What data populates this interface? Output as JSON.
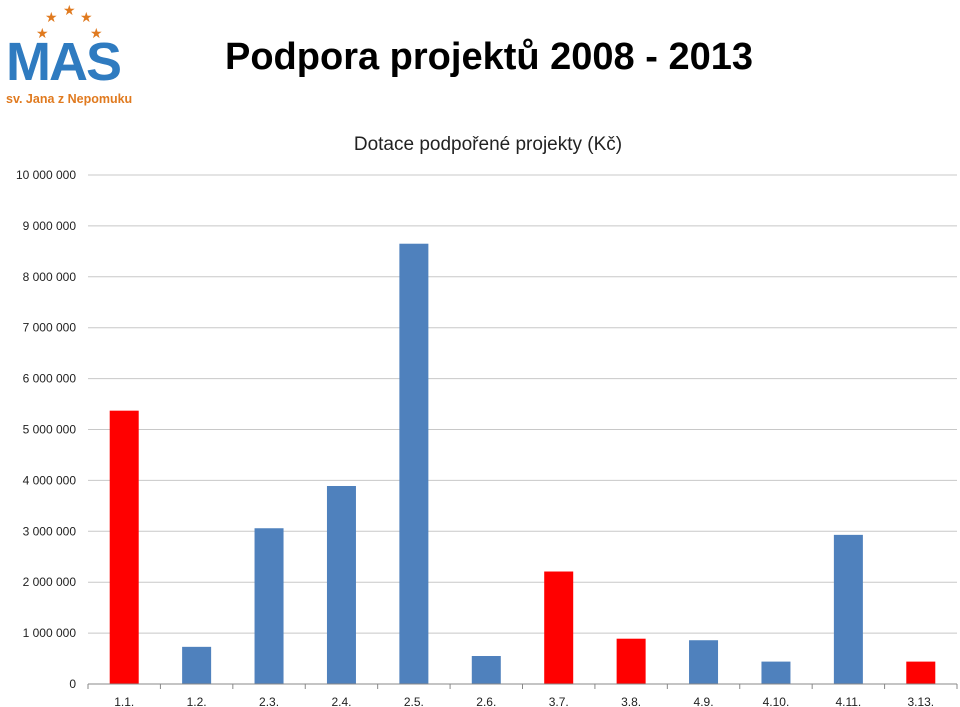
{
  "header": {
    "title": "Podpora projektů 2008 - 2013",
    "logo": {
      "letters": [
        "M",
        "A",
        "S"
      ],
      "subtitle": "sv. Jana z Nepomuku",
      "primary_color": "#2f7bc0",
      "accent_color": "#e07a1f"
    }
  },
  "chart_data": {
    "type": "bar",
    "title": "Dotace podpořené projekty (Kč)",
    "xlabel": "",
    "ylabel": "",
    "ylim": [
      0,
      10000000
    ],
    "yticks": [
      0,
      1000000,
      2000000,
      3000000,
      4000000,
      5000000,
      6000000,
      7000000,
      8000000,
      9000000,
      10000000
    ],
    "ytick_labels": [
      "0",
      "1 000 000",
      "2 000 000",
      "3 000 000",
      "4 000 000",
      "5 000 000",
      "6 000 000",
      "7 000 000",
      "8 000 000",
      "9 000 000",
      "10 000 000"
    ],
    "categories": [
      "1.1.",
      "1.2.",
      "2.3.",
      "2.4.",
      "2.5.",
      "2.6.",
      "3.7.",
      "3.8.",
      "4.9.",
      "4.10.",
      "4.11.",
      "3.13."
    ],
    "values": [
      5370000,
      730000,
      3060000,
      3890000,
      8650000,
      550000,
      2210000,
      890000,
      860000,
      440000,
      2930000,
      440000
    ],
    "bar_colors": [
      "#ff0000",
      "#4f81bd",
      "#4f81bd",
      "#4f81bd",
      "#4f81bd",
      "#4f81bd",
      "#ff0000",
      "#ff0000",
      "#4f81bd",
      "#4f81bd",
      "#4f81bd",
      "#ff0000"
    ],
    "grid": true,
    "legend": false
  }
}
